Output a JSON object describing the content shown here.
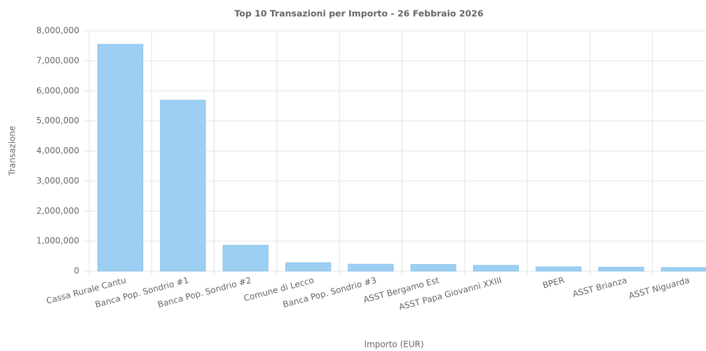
{
  "chart_data": {
    "type": "bar",
    "title": "Top 10 Transazioni per Importo - 26 Febbraio 2026",
    "x_label": "Importo (EUR)",
    "y_label": "Transazione",
    "categories": [
      "Cassa Rurale Cantu",
      "Banca Pop. Sondrio #1",
      "Banca Pop. Sondrio #2",
      "Comune di Lecco",
      "Banca Pop. Sondrio #3",
      "ASST Bergamo Est",
      "ASST Papa Giovanni XXIII",
      "BPER",
      "ASST Brianza",
      "ASST Niguarda"
    ],
    "values": [
      7550000,
      5690000,
      860000,
      280000,
      230000,
      220000,
      190000,
      140000,
      130000,
      120000
    ],
    "color": "#9dcff3",
    "ylim": [
      0,
      8000000
    ],
    "yticks": [
      0,
      {
        "value": 1000000,
        "label": "1,000,000"
      },
      {
        "value": 2000000,
        "label": "2,000,000"
      },
      {
        "value": 3000000,
        "label": "3,000,000"
      },
      {
        "value": 4000000,
        "label": "4,000,000"
      },
      {
        "value": 5000000,
        "label": "5,000,000"
      },
      {
        "value": 6000000,
        "label": "6,000,000"
      },
      {
        "value": 7000000,
        "label": "7,000,000"
      },
      {
        "value": 8000000,
        "label": "8,000,000"
      }
    ],
    "grid": true
  }
}
